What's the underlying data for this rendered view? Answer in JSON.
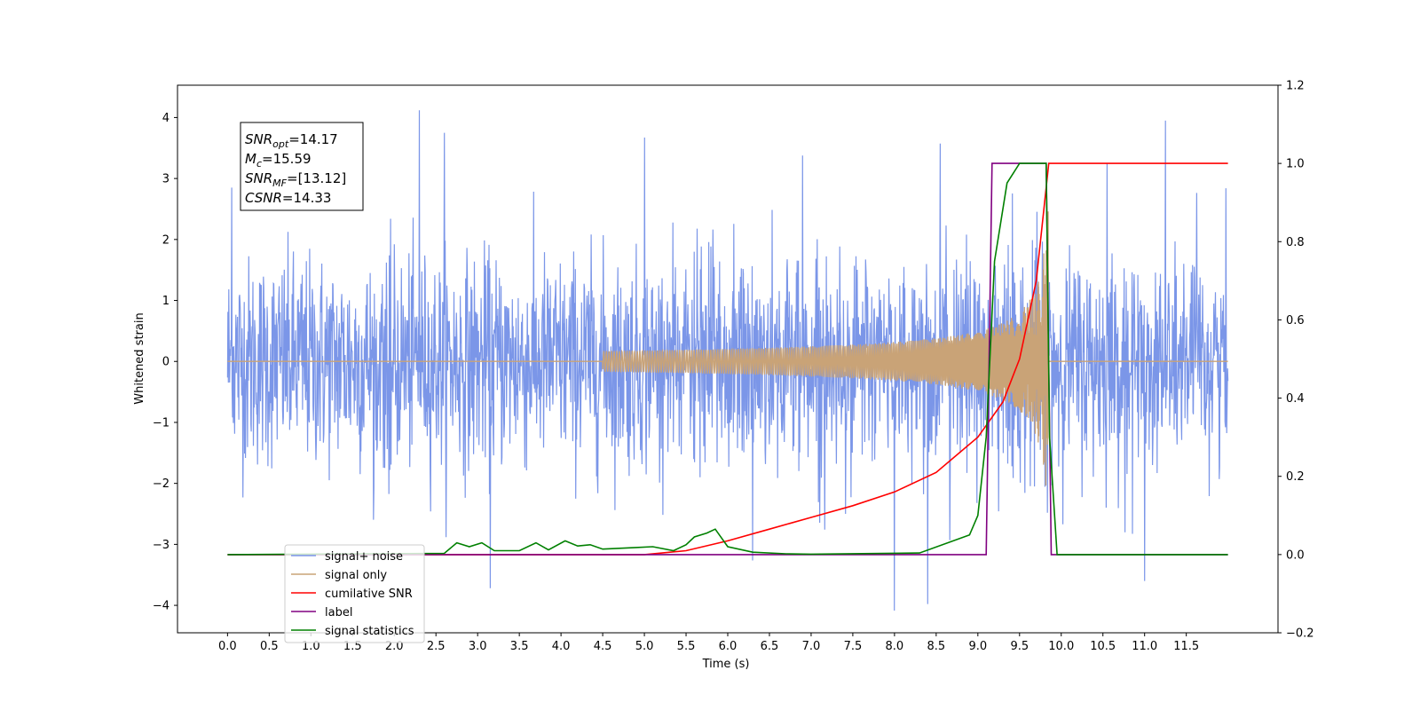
{
  "chart_data": {
    "type": "line",
    "xlabel": "Time (s)",
    "ylabel": "Whitened strain",
    "xlim": [
      -0.6,
      12.6
    ],
    "ylim": [
      -4.45,
      4.53
    ],
    "ylim_right": [
      -0.2,
      1.2
    ],
    "x_ticks": [
      "0.0",
      "0.5",
      "1.0",
      "1.5",
      "2.0",
      "2.5",
      "3.0",
      "3.5",
      "4.0",
      "4.5",
      "5.0",
      "5.5",
      "6.0",
      "6.5",
      "7.0",
      "7.5",
      "8.0",
      "8.5",
      "9.0",
      "9.5",
      "10.0",
      "10.5",
      "11.0",
      "11.5"
    ],
    "y_ticks_left": [
      "4",
      "3",
      "2",
      "1",
      "0",
      "−1",
      "−2",
      "−3",
      "−4"
    ],
    "y_ticks_right": [
      "1.2",
      "1.0",
      "0.8",
      "0.6",
      "0.4",
      "0.2",
      "0.0",
      "−0.2"
    ],
    "grid": false,
    "legend_placement": "lower-left",
    "annotation": {
      "snr_opt": {
        "symbol": "SNR",
        "sub": "opt",
        "value": "=14.17"
      },
      "mc": {
        "symbol": "M",
        "sub": "c",
        "value": "=15.59"
      },
      "snr_mf": {
        "symbol": "SNR",
        "sub": "MF",
        "value": "=[13.12]"
      },
      "csnr": {
        "symbol": "CSNR",
        "sub": "",
        "value": "=14.33"
      }
    },
    "series": [
      {
        "name": "signal+ noise",
        "axis": "left",
        "color": "#7b96e8",
        "description_x": [
          0,
          12
        ],
        "envelope_y": [
          -2.2,
          2.2
        ],
        "peaks": [
          [
            0.05,
            2.85
          ],
          [
            2.3,
            4.12
          ],
          [
            2.6,
            3.75
          ],
          [
            5.0,
            3.6
          ],
          [
            6.9,
            3.3
          ],
          [
            8.55,
            3.4
          ],
          [
            10.55,
            3.25
          ],
          [
            11.25,
            3.95
          ],
          [
            3.15,
            -3.72
          ],
          [
            8.0,
            -3.9
          ],
          [
            8.4,
            -4.0
          ],
          [
            11.0,
            -3.6
          ],
          [
            6.3,
            -3.35
          ]
        ]
      },
      {
        "name": "signal only",
        "axis": "left",
        "color": "#c9a377",
        "chirp_x": [
          4.5,
          9.85
        ],
        "peak_amplitude": 2.5
      },
      {
        "name": "cumilative SNR",
        "axis": "right",
        "color": "#ff0000",
        "x": [
          0,
          5.0,
          5.5,
          6.0,
          6.5,
          7.0,
          7.5,
          8.0,
          8.5,
          9.0,
          9.3,
          9.5,
          9.7,
          9.85,
          9.87,
          12
        ],
        "y": [
          0,
          0,
          0.01,
          0.035,
          0.065,
          0.095,
          0.125,
          0.16,
          0.21,
          0.3,
          0.39,
          0.5,
          0.7,
          1.0,
          1.0,
          1.0
        ]
      },
      {
        "name": "label",
        "axis": "right",
        "color": "#800080",
        "x": [
          0,
          9.1,
          9.17,
          9.82,
          9.88,
          12
        ],
        "y": [
          0,
          0,
          1,
          1,
          0,
          0
        ]
      },
      {
        "name": "signal statistics",
        "axis": "right",
        "color": "#008000",
        "x": [
          0,
          2.6,
          2.75,
          2.9,
          3.05,
          3.2,
          3.5,
          3.7,
          3.85,
          4.05,
          4.2,
          4.35,
          4.5,
          4.9,
          5.1,
          5.35,
          5.5,
          5.6,
          5.75,
          5.85,
          6.0,
          6.3,
          6.7,
          7.0,
          8.3,
          8.9,
          9.0,
          9.1,
          9.2,
          9.35,
          9.5,
          9.65,
          9.75,
          9.82,
          9.86,
          9.95,
          12
        ],
        "y": [
          0,
          0.003,
          0.03,
          0.02,
          0.03,
          0.01,
          0.01,
          0.03,
          0.012,
          0.035,
          0.022,
          0.025,
          0.014,
          0.018,
          0.02,
          0.01,
          0.025,
          0.045,
          0.055,
          0.065,
          0.02,
          0.006,
          0.002,
          0.001,
          0.004,
          0.05,
          0.1,
          0.3,
          0.75,
          0.95,
          1.0,
          1.0,
          1.0,
          1.0,
          0.3,
          0.0,
          0.0
        ]
      }
    ]
  }
}
